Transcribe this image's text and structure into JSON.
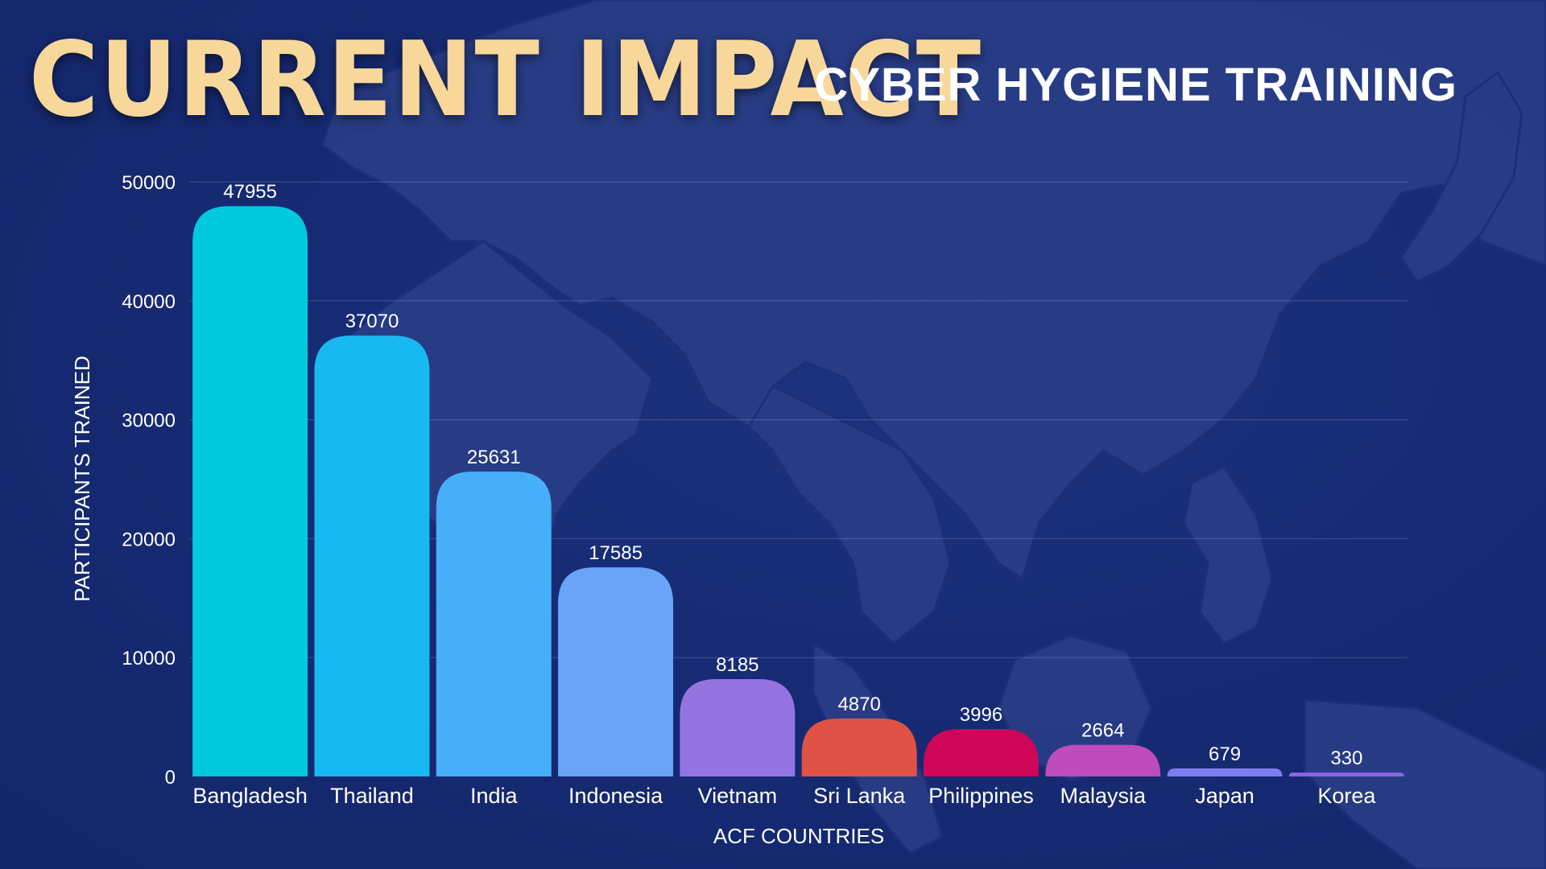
{
  "header": {
    "title": "CURRENT IMPACT",
    "subtitle": "CYBER HYGIENE TRAINING"
  },
  "chart_data": {
    "type": "bar",
    "xlabel": "ACF COUNTRIES",
    "ylabel": "PARTICIPANTS TRAINED",
    "ylim": [
      0,
      50000
    ],
    "yticks": [
      0,
      10000,
      20000,
      30000,
      40000,
      50000
    ],
    "grid": true,
    "categories": [
      "Bangladesh",
      "Thailand",
      "India",
      "Indonesia",
      "Vietnam",
      "Sri Lanka",
      "Philippines",
      "Malaysia",
      "Japan",
      "Korea"
    ],
    "values": [
      47955,
      37070,
      25631,
      17585,
      8185,
      4870,
      3996,
      2664,
      679,
      330
    ],
    "data_labels": [
      "47955",
      "37070",
      "25631",
      "17585",
      "8185",
      "4870",
      "3996",
      "2664",
      "679",
      "330"
    ],
    "colors": [
      "#00c9de",
      "#18b9f2",
      "#47aef9",
      "#6aa4f8",
      "#9574e2",
      "#e05246",
      "#cf0558",
      "#bd4cbc",
      "#7d7df0",
      "#8d63e4"
    ]
  },
  "theme": {
    "background": "#162a72",
    "title_color": "#f8d79a",
    "map_color": "#2d4088"
  }
}
